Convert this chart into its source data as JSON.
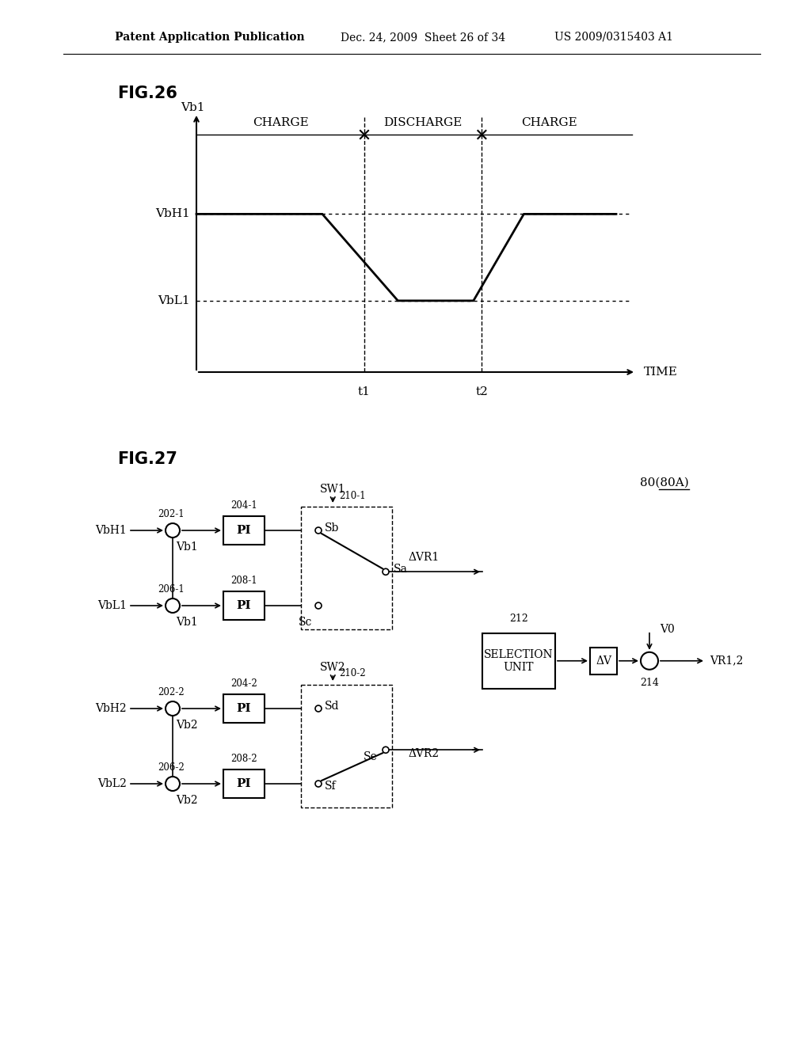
{
  "page_header_left": "Patent Application Publication",
  "page_header_mid": "Dec. 24, 2009  Sheet 26 of 34",
  "page_header_right": "US 2009/0315403 A1",
  "fig26_label": "FIG.26",
  "fig27_label": "FIG.27",
  "bg_color": "#ffffff",
  "text_color": "#000000",
  "line_color": "#000000",
  "fig26": {
    "ylabel": "Vb1",
    "xlabel": "TIME",
    "VbH1_label": "VbH1",
    "VbL1_label": "VbL1",
    "t1_label": "t1",
    "t2_label": "t2",
    "charge_label": "CHARGE",
    "discharge_label": "DISCHARGE",
    "charge2_label": "CHARGE"
  },
  "fig27": {
    "label_80": "80(80A)",
    "sw1": "SW1",
    "sw2": "SW2",
    "n202_1": "202-1",
    "n204_1": "204-1",
    "n206_1": "206-1",
    "n208_1": "208-1",
    "n210_1": "210-1",
    "n202_2": "202-2",
    "n204_2": "204-2",
    "n206_2": "206-2",
    "n208_2": "208-2",
    "n210_2": "210-2",
    "n212": "212",
    "n214": "214",
    "VbH1": "VbH1",
    "VbL1": "VbL1",
    "VbH2": "VbH2",
    "VbL2": "VbL2",
    "Vb1_1": "Vb1",
    "Vb1_2": "Vb1",
    "Vb2_1": "Vb2",
    "Vb2_2": "Vb2",
    "Sb": "Sb",
    "Sc": "Sc",
    "Sa": "Sa",
    "Sd": "Sd",
    "Se": "Se",
    "Sf": "Sf",
    "DVR1": "ΔVR1",
    "DVR2": "ΔVR2",
    "DV": "ΔV",
    "V0": "V0",
    "VR12": "VR1,2",
    "PI": "PI",
    "SEL1": "SELECTION",
    "SEL2": "UNIT"
  }
}
